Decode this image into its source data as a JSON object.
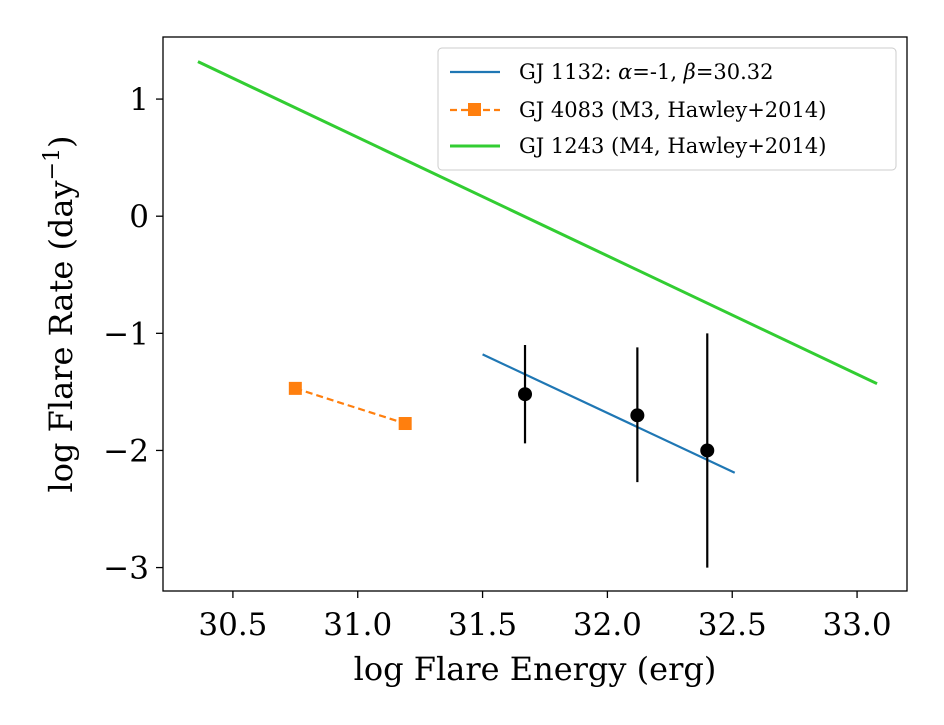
{
  "chart_data": {
    "type": "line",
    "xlabel": "log Flare Energy (erg)",
    "ylabel_main": "log Flare Rate (day",
    "ylabel_sup": "−1",
    "ylabel_close": ")",
    "xlim": [
      30.22,
      33.2
    ],
    "ylim": [
      -3.2,
      1.53
    ],
    "xticks": [
      30.5,
      31.0,
      31.5,
      32.0,
      32.5,
      33.0
    ],
    "xtick_labels": [
      "30.5",
      "31.0",
      "31.5",
      "32.0",
      "32.5",
      "33.0"
    ],
    "yticks": [
      1,
      0,
      -1,
      -2,
      -3
    ],
    "ytick_labels": [
      "1",
      "0",
      "−1",
      "−2",
      "−3"
    ],
    "grid": false,
    "legend_position": "top-right",
    "series": [
      {
        "name": "GJ 1132: α=-1, β=30.32",
        "legend_parts": [
          "GJ 1132: ",
          "α",
          "=-1, ",
          "β",
          "=30.32"
        ],
        "style": "solid",
        "color": "#1f77b4",
        "x": [
          31.5,
          32.51
        ],
        "y": [
          -1.18,
          -2.19
        ]
      },
      {
        "name": "GJ 4083 (M3, Hawley+2014)",
        "style": "dashed",
        "marker": "square",
        "color": "#ff7f0e",
        "x": [
          30.75,
          31.19
        ],
        "y": [
          -1.47,
          -1.77
        ]
      },
      {
        "name": "GJ 1243 (M4, Hawley+2014)",
        "style": "solid",
        "color": "#32cd32",
        "x": [
          30.36,
          33.08
        ],
        "y": [
          1.32,
          -1.43
        ]
      }
    ],
    "points": {
      "color": "#000000",
      "x": [
        31.67,
        32.12,
        32.4
      ],
      "y": [
        -1.52,
        -1.7,
        -2.0
      ],
      "yerr_low": [
        -1.94,
        -2.27,
        -3.0
      ],
      "yerr_high": [
        -1.1,
        -1.12,
        -1.0
      ]
    }
  }
}
